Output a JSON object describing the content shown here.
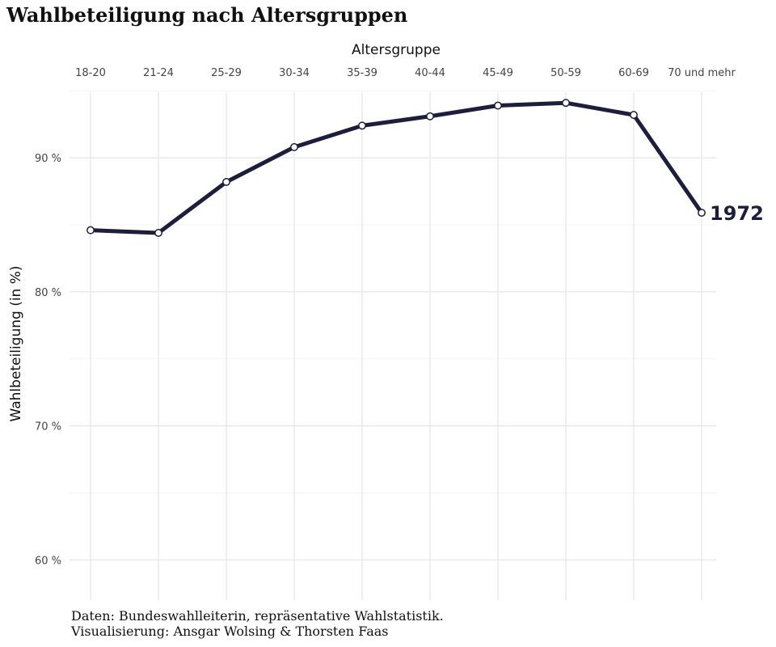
{
  "chart_data": {
    "type": "line",
    "title": "Wahlbeteiligung nach Altersgruppen",
    "xlabel": "Altersgruppe",
    "ylabel": "Wahlbeteiligung (in %)",
    "categories": [
      "18-20",
      "21-24",
      "25-29",
      "30-34",
      "35-39",
      "40-44",
      "45-49",
      "50-59",
      "60-69",
      "70 und mehr"
    ],
    "series": [
      {
        "name": "1972",
        "values": [
          84.6,
          84.4,
          88.2,
          90.8,
          92.4,
          93.1,
          93.9,
          94.1,
          93.2,
          85.9
        ]
      }
    ],
    "yticks": [
      60,
      70,
      80,
      90
    ],
    "ytick_labels": [
      "60 %",
      "70 %",
      "80 %",
      "90 %"
    ],
    "ylim": [
      57,
      95.5
    ],
    "grid": true,
    "x_axis_position": "top",
    "line_color": "#1c1e3b",
    "end_label": "1972"
  },
  "caption": {
    "line1": "Daten: Bundeswahlleiterin, repräsentative Wahlstatistik.",
    "line2": "Visualisierung: Ansgar Wolsing & Thorsten Faas"
  }
}
